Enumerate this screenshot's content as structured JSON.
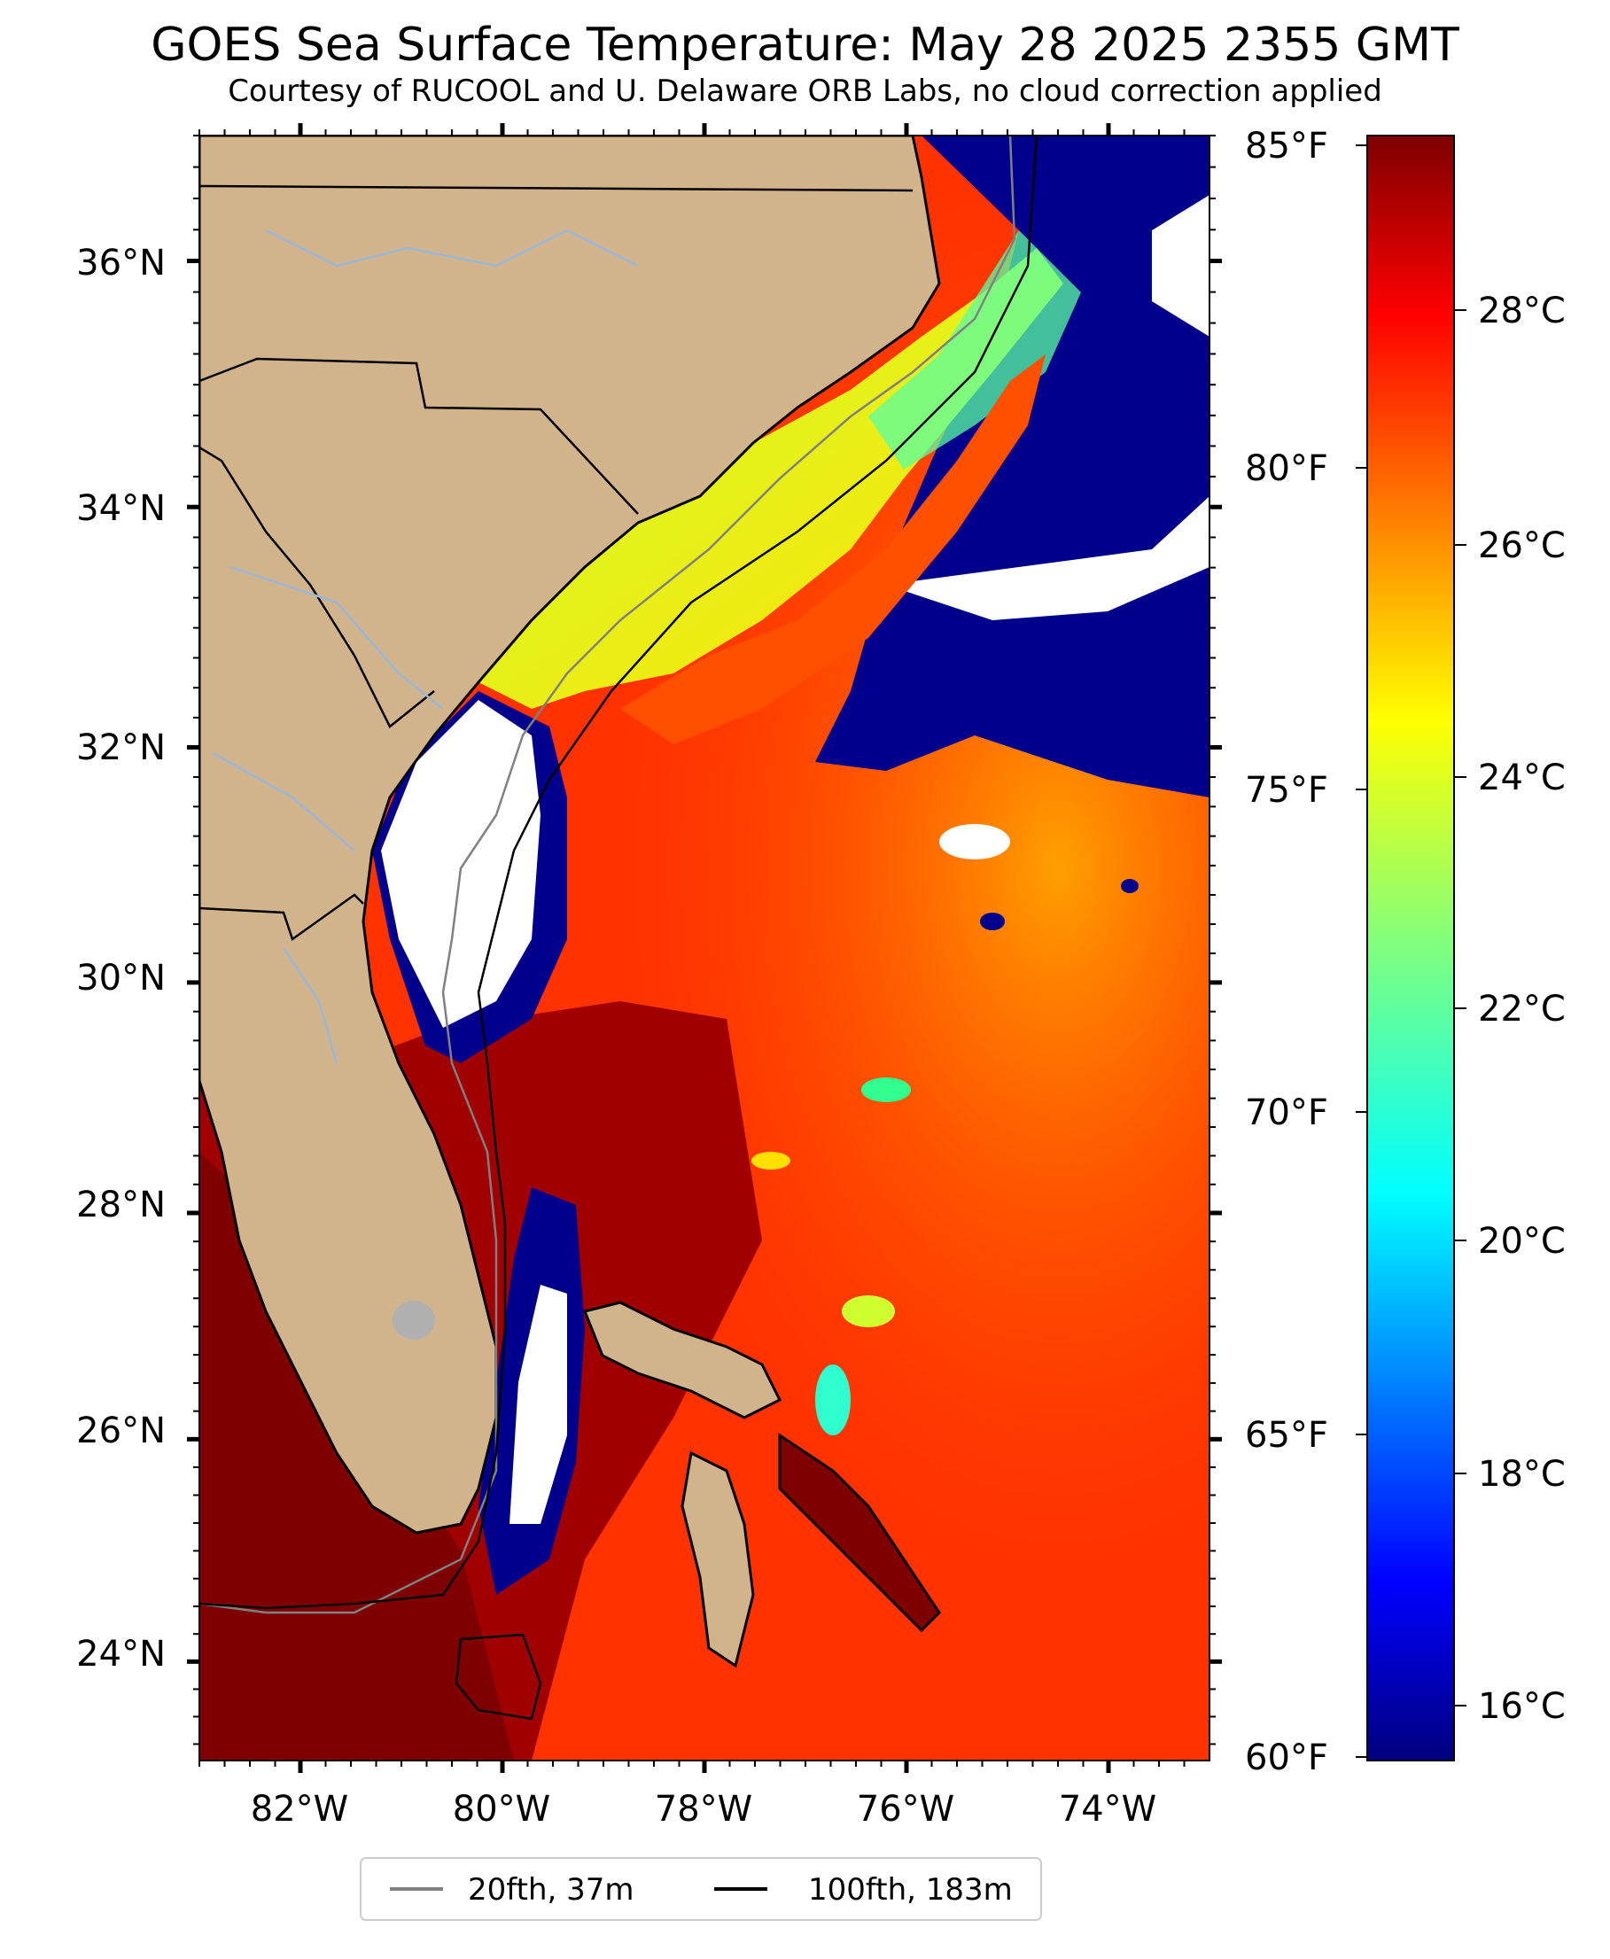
{
  "title": "GOES Sea Surface Temperature: May 28 2025 2355 GMT",
  "subtitle": "Courtesy of RUCOOL and U. Delaware ORB Labs, no cloud correction applied",
  "map": {
    "lon_range": [
      -83.0,
      -73.0
    ],
    "lat_range": [
      23.1,
      37.0
    ],
    "lon_labels": [
      "82°W",
      "80°W",
      "78°W",
      "76°W",
      "74°W"
    ],
    "lat_labels": [
      "36°N",
      "34°N",
      "32°N",
      "30°N",
      "28°N",
      "26°N",
      "24°N"
    ],
    "colors": {
      "land": "#d2b48c",
      "rivers": "#9bb7d8",
      "state_lines": "#000000",
      "no_data": "#ffffff"
    }
  },
  "colorbar": {
    "colormap": "jet",
    "range_c": [
      15.6,
      29.4
    ],
    "celsius_labels": [
      "28°C",
      "26°C",
      "24°C",
      "22°C",
      "20°C",
      "18°C",
      "16°C"
    ],
    "fahrenheit_labels": [
      "85°F",
      "80°F",
      "75°F",
      "70°F",
      "65°F",
      "60°F"
    ]
  },
  "legend": {
    "items": [
      {
        "label": "20fth, 37m",
        "color": "#808080"
      },
      {
        "label": "100fth, 183m",
        "color": "#000000"
      }
    ]
  }
}
